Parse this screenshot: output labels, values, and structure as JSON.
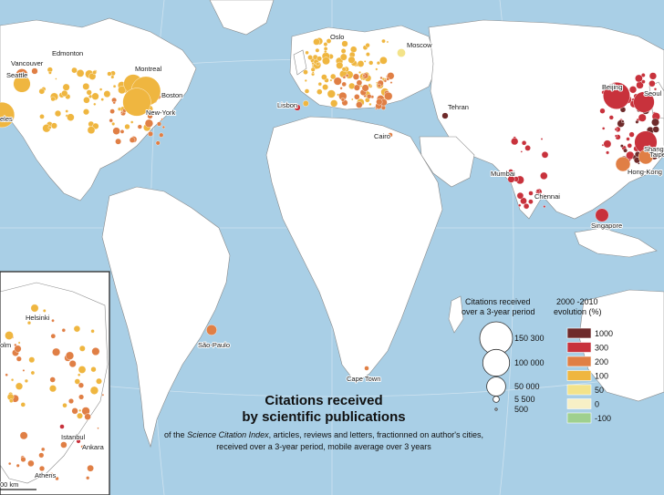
{
  "title_line1": "Citations received",
  "title_line2": "by scientific publications",
  "subtitle": {
    "line1_prefix": "of the ",
    "line1_italic": "Science Citation Index",
    "line1_suffix": ", articles, reviews and letters, fractionned on author's cities,",
    "line2": "received over a 3-year period, mobile average over 3 years"
  },
  "legend_size": {
    "title_line1": "Citations received",
    "title_line2": "over a 3-year period",
    "items": [
      {
        "label": "150 300",
        "value": 150300
      },
      {
        "label": "100 000",
        "value": 100000
      },
      {
        "label": "50 000",
        "value": 50000
      },
      {
        "label": "5 500",
        "value": 5500
      },
      {
        "label": "500",
        "value": 500
      }
    ]
  },
  "legend_color": {
    "title_line1": "2000 -2010",
    "title_line2": "evolution (%)",
    "items": [
      {
        "label": "1000",
        "color": "#6e2a2a"
      },
      {
        "label": "300",
        "color": "#c8323c"
      },
      {
        "label": "200",
        "color": "#e07f45"
      },
      {
        "label": "100",
        "color": "#efb640"
      },
      {
        "label": "50",
        "color": "#f3e38a"
      },
      {
        "label": "0",
        "color": "#f7f0c6"
      },
      {
        "label": "-100",
        "color": "#9fd08f"
      }
    ]
  },
  "scale_label": "00 km",
  "cities": [
    {
      "name": "Edmonton",
      "value": 5500,
      "color": "#e07f45"
    },
    {
      "name": "Vancouver",
      "value": 20000,
      "color": "#e07f45"
    },
    {
      "name": "Seattle",
      "value": 40000,
      "color": "#efb640"
    },
    {
      "name": "eles",
      "value": 90000,
      "color": "#efb640"
    },
    {
      "name": "Montreal",
      "value": 50000,
      "color": "#efb640"
    },
    {
      "name": "Boston",
      "value": 120000,
      "color": "#efb640"
    },
    {
      "name": "New-York",
      "value": 110000,
      "color": "#efb640"
    },
    {
      "name": "Oslo",
      "value": 5500,
      "color": "#efb640"
    },
    {
      "name": "Moscow",
      "value": 10000,
      "color": "#f3e38a"
    },
    {
      "name": "Lisbon",
      "value": 5500,
      "color": "#c8323c"
    },
    {
      "name": "Tehran",
      "value": 5500,
      "color": "#6e2a2a"
    },
    {
      "name": "Cairo",
      "value": 3000,
      "color": "#e07f45"
    },
    {
      "name": "Mumbai",
      "value": 3000,
      "color": "#c8323c"
    },
    {
      "name": "Chennai",
      "value": 3000,
      "color": "#c8323c"
    },
    {
      "name": "Beijing",
      "value": 100000,
      "color": "#c8323c"
    },
    {
      "name": "Seoul",
      "value": 60000,
      "color": "#c8323c"
    },
    {
      "name": "Shangh",
      "value": 70000,
      "color": "#c8323c"
    },
    {
      "name": "Taipe",
      "value": 30000,
      "color": "#e07f45"
    },
    {
      "name": "Hong-Kong",
      "value": 30000,
      "color": "#e07f45"
    },
    {
      "name": "Singapore",
      "value": 25000,
      "color": "#c8323c"
    },
    {
      "name": "São-Paulo",
      "value": 15000,
      "color": "#e07f45"
    },
    {
      "name": "Cape Town",
      "value": 3000,
      "color": "#e07f45"
    },
    {
      "name": "Helsinki",
      "value": 8000,
      "color": "#efb640"
    },
    {
      "name": "olm",
      "value": 10000,
      "color": "#efb640"
    },
    {
      "name": "Istanbul",
      "value": 3000,
      "color": "#c8323c"
    },
    {
      "name": "Ankara",
      "value": 2500,
      "color": "#c8323c"
    },
    {
      "name": "Athens",
      "value": 4000,
      "color": "#e07f45"
    }
  ]
}
